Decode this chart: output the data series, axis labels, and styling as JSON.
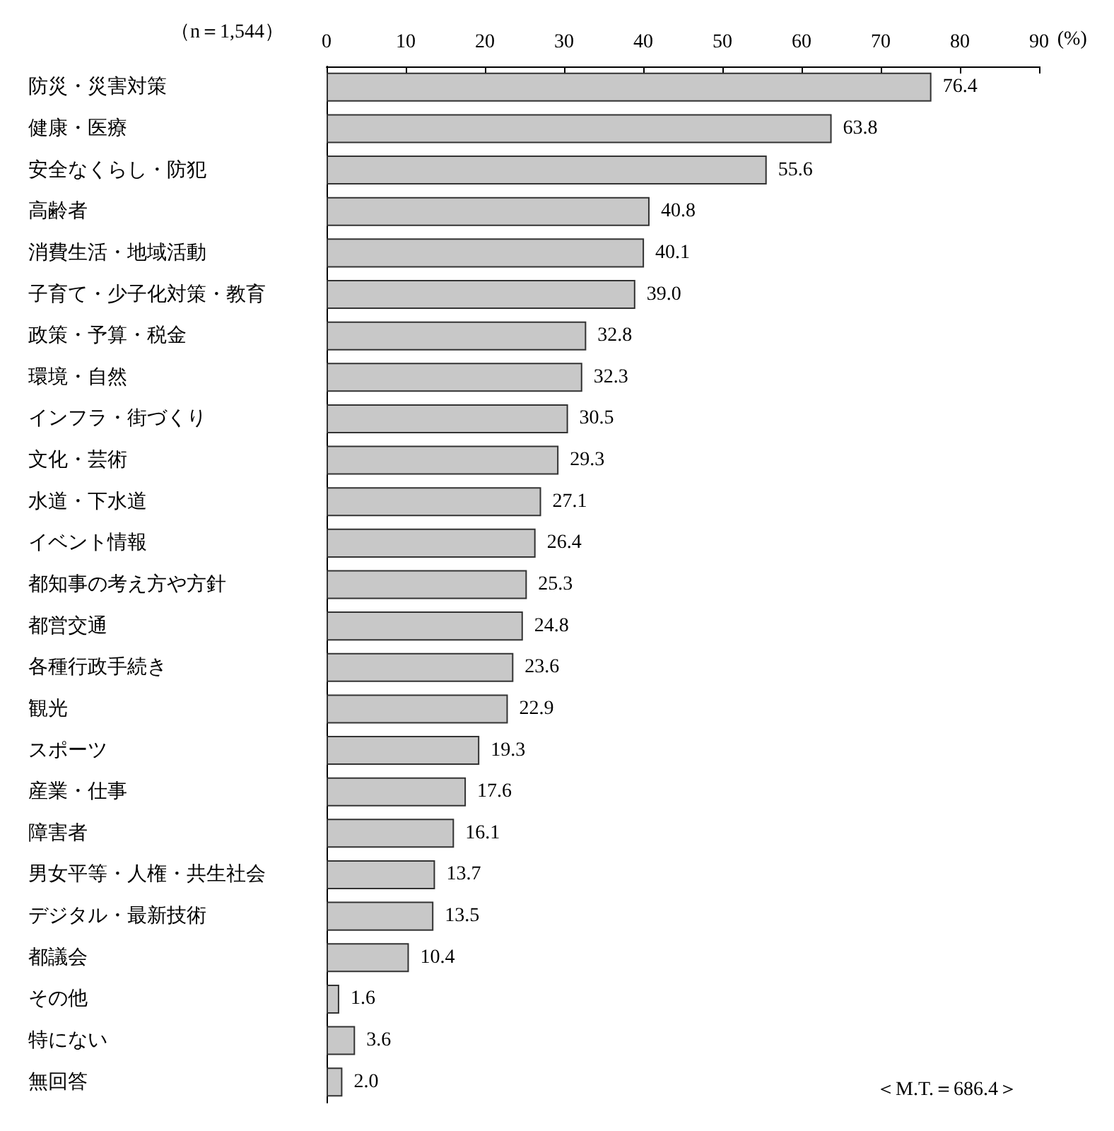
{
  "chart_data": {
    "type": "bar",
    "orientation": "horizontal",
    "categories": [
      "防災・災害対策",
      "健康・医療",
      "安全なくらし・防犯",
      "高齢者",
      "消費生活・地域活動",
      "子育て・少子化対策・教育",
      "政策・予算・税金",
      "環境・自然",
      "インフラ・街づくり",
      "文化・芸術",
      "水道・下水道",
      "イベント情報",
      "都知事の考え方や方針",
      "都営交通",
      "各種行政手続き",
      "観光",
      "スポーツ",
      "産業・仕事",
      "障害者",
      "男女平等・人権・共生社会",
      "デジタル・最新技術",
      "都議会",
      "その他",
      "特にない",
      "無回答"
    ],
    "values": [
      76.4,
      63.8,
      55.6,
      40.8,
      40.1,
      39.0,
      32.8,
      32.3,
      30.5,
      29.3,
      27.1,
      26.4,
      25.3,
      24.8,
      23.6,
      22.9,
      19.3,
      17.6,
      16.1,
      13.7,
      13.5,
      10.4,
      1.6,
      3.6,
      2.0
    ],
    "value_labels": [
      "76.4",
      "63.8",
      "55.6",
      "40.8",
      "40.1",
      "39.0",
      "32.8",
      "32.3",
      "30.5",
      "29.3",
      "27.1",
      "26.4",
      "25.3",
      "24.8",
      "23.6",
      "22.9",
      "19.3",
      "17.6",
      "16.1",
      "13.7",
      "13.5",
      "10.4",
      "1.6",
      "3.6",
      "2.0"
    ],
    "color": "#c8c8c8",
    "xlim": [
      0,
      90
    ],
    "xticks": [
      0,
      10,
      20,
      30,
      40,
      50,
      60,
      70,
      80,
      90
    ],
    "xlabel": "(%)",
    "annotations": [
      "（n＝1,544）",
      "＜M.T.＝686.4＞"
    ]
  }
}
